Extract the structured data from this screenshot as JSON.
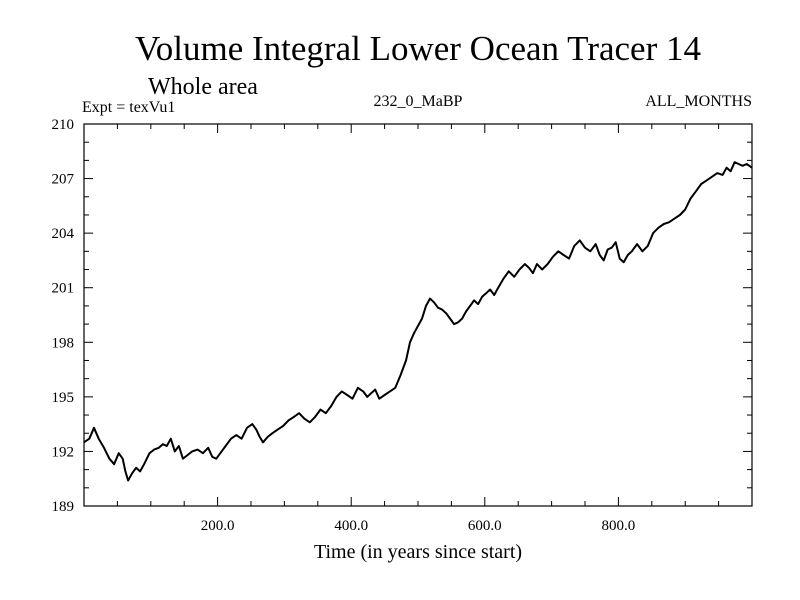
{
  "chart_data": {
    "type": "line",
    "title": "Volume Integral Lower Ocean Tracer 14",
    "subtitle": "Whole area",
    "experiment": "Expt = texVu1",
    "run_label": "232_0_MaBP",
    "period_label": "ALL_MONTHS",
    "xlabel": "Time (in years since start)",
    "ylabel": "",
    "xlim": [
      0,
      1000
    ],
    "ylim": [
      189,
      210
    ],
    "x_ticks": [
      200,
      400,
      600,
      800
    ],
    "x_tick_labels": [
      "200.0",
      "400.0",
      "600.0",
      "800.0"
    ],
    "y_ticks": [
      189,
      192,
      195,
      198,
      201,
      204,
      207,
      210
    ],
    "y_tick_labels": [
      "189",
      "192",
      "195",
      "198",
      "201",
      "204",
      "207",
      "210"
    ],
    "grid": false,
    "series": [
      {
        "name": "texVu1",
        "color": "#000000",
        "x": [
          0,
          8,
          15,
          22,
          30,
          38,
          45,
          52,
          58,
          62,
          66,
          72,
          78,
          84,
          90,
          98,
          105,
          112,
          118,
          124,
          130,
          136,
          142,
          148,
          155,
          162,
          170,
          178,
          186,
          192,
          198,
          204,
          212,
          220,
          228,
          236,
          244,
          252,
          258,
          263,
          268,
          275,
          282,
          290,
          298,
          306,
          314,
          322,
          330,
          338,
          346,
          354,
          362,
          370,
          378,
          386,
          394,
          402,
          410,
          418,
          424,
          430,
          436,
          442,
          450,
          458,
          466,
          474,
          482,
          488,
          494,
          500,
          506,
          512,
          518,
          524,
          530,
          536,
          542,
          548,
          554,
          560,
          566,
          572,
          578,
          584,
          590,
          596,
          602,
          608,
          614,
          620,
          628,
          636,
          644,
          652,
          660,
          666,
          672,
          678,
          686,
          694,
          702,
          710,
          718,
          726,
          734,
          742,
          750,
          758,
          766,
          772,
          778,
          784,
          790,
          796,
          802,
          808,
          814,
          820,
          828,
          836,
          844,
          852,
          860,
          868,
          876,
          884,
          892,
          900,
          908,
          916,
          924,
          932,
          940,
          948,
          956,
          962,
          968,
          974,
          980,
          986,
          992,
          1000
        ],
        "y": [
          192.5,
          192.7,
          193.3,
          192.7,
          192.2,
          191.6,
          191.3,
          191.9,
          191.6,
          190.9,
          190.4,
          190.8,
          191.1,
          190.9,
          191.3,
          191.9,
          192.1,
          192.2,
          192.4,
          192.3,
          192.7,
          192.0,
          192.3,
          191.6,
          191.8,
          192.0,
          192.1,
          191.9,
          192.2,
          191.7,
          191.6,
          191.9,
          192.3,
          192.7,
          192.9,
          192.7,
          193.3,
          193.5,
          193.2,
          192.8,
          192.5,
          192.8,
          193.0,
          193.2,
          193.4,
          193.7,
          193.9,
          194.1,
          193.8,
          193.6,
          193.9,
          194.3,
          194.1,
          194.5,
          195.0,
          195.3,
          195.1,
          194.9,
          195.5,
          195.3,
          195.0,
          195.2,
          195.4,
          194.9,
          195.1,
          195.3,
          195.5,
          196.2,
          197.0,
          198.0,
          198.5,
          198.9,
          199.3,
          200.0,
          200.4,
          200.2,
          199.9,
          199.8,
          199.6,
          199.3,
          199.0,
          199.1,
          199.3,
          199.7,
          200.0,
          200.3,
          200.1,
          200.5,
          200.7,
          200.9,
          200.6,
          201.0,
          201.5,
          201.9,
          201.6,
          202.0,
          202.3,
          202.1,
          201.8,
          202.3,
          202.0,
          202.3,
          202.7,
          203.0,
          202.8,
          202.6,
          203.3,
          203.6,
          203.2,
          203.0,
          203.4,
          202.8,
          202.5,
          203.1,
          203.2,
          203.5,
          202.6,
          202.4,
          202.8,
          203.0,
          203.4,
          203.0,
          203.3,
          204.0,
          204.3,
          204.5,
          204.6,
          204.8,
          205.0,
          205.3,
          205.9,
          206.3,
          206.7,
          206.9,
          207.1,
          207.3,
          207.2,
          207.6,
          207.4,
          207.9,
          207.8,
          207.7,
          207.8,
          207.6
        ]
      }
    ]
  }
}
